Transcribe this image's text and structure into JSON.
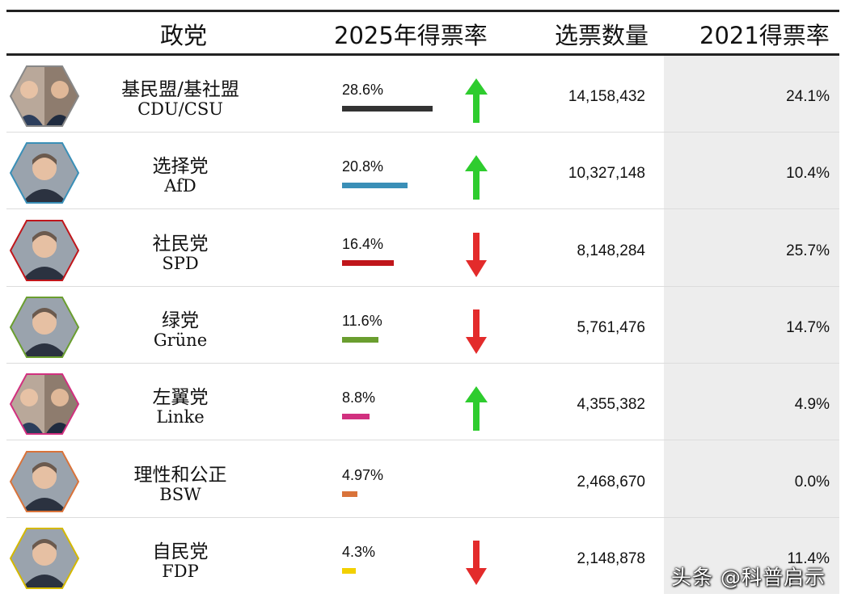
{
  "header": {
    "party": "政党",
    "share2025": "2025年得票率",
    "votes": "选票数量",
    "share2021": "2021得票率"
  },
  "colors": {
    "up": "#2ecc2e",
    "down": "#e32b2b"
  },
  "rows": [
    {
      "cn": "基民盟/基社盟",
      "en": "CDU/CSU",
      "pct": "28.6%",
      "share": 28.6,
      "color": "#333333",
      "trend": "up",
      "votes": "14,158,432",
      "prev": "24.1%",
      "border": "#888888",
      "icon": "two-leaders-portrait-icon"
    },
    {
      "cn": "选择党",
      "en": "AfD",
      "pct": "20.8%",
      "share": 20.8,
      "color": "#3a8fb7",
      "trend": "up",
      "votes": "10,327,148",
      "prev": "10.4%",
      "border": "#3a8fb7",
      "icon": "leader-portrait-icon"
    },
    {
      "cn": "社民党",
      "en": "SPD",
      "pct": "16.4%",
      "share": 16.4,
      "color": "#c0161b",
      "trend": "down",
      "votes": "8,148,284",
      "prev": "25.7%",
      "border": "#c0161b",
      "icon": "leader-portrait-icon"
    },
    {
      "cn": "绿党",
      "en": "Grüne",
      "pct": "11.6%",
      "share": 11.6,
      "color": "#6a9e2f",
      "trend": "down",
      "votes": "5,761,476",
      "prev": "14.7%",
      "border": "#6a9e2f",
      "icon": "leader-portrait-icon"
    },
    {
      "cn": "左翼党",
      "en": "Linke",
      "pct": "8.8%",
      "share": 8.8,
      "color": "#d1307f",
      "trend": "up",
      "votes": "4,355,382",
      "prev": "4.9%",
      "border": "#d1307f",
      "icon": "two-leaders-portrait-icon"
    },
    {
      "cn": "理性和公正",
      "en": "BSW",
      "pct": "4.97%",
      "share": 4.97,
      "color": "#d9733a",
      "trend": "none",
      "votes": "2,468,670",
      "prev": "0.0%",
      "border": "#d9733a",
      "icon": "leader-portrait-icon"
    },
    {
      "cn": "自民党",
      "en": "FDP",
      "pct": "4.3%",
      "share": 4.3,
      "color": "#f2d000",
      "trend": "down",
      "votes": "2,148,878",
      "prev": "11.4%",
      "border": "#d4b800",
      "icon": "leader-portrait-icon"
    }
  ],
  "chart_data": {
    "type": "table",
    "columns": [
      "政党",
      "2025年得票率",
      "选票数量",
      "2021得票率"
    ],
    "categories": [
      "CDU/CSU",
      "AfD",
      "SPD",
      "Grüne",
      "Linke",
      "BSW",
      "FDP"
    ],
    "series": [
      {
        "name": "2025年得票率",
        "values": [
          28.6,
          20.8,
          16.4,
          11.6,
          8.8,
          4.97,
          4.3
        ]
      },
      {
        "name": "选票数量",
        "values": [
          14158432,
          10327148,
          8148284,
          5761476,
          4355382,
          2468670,
          2148878
        ]
      },
      {
        "name": "2021得票率",
        "values": [
          24.1,
          10.4,
          25.7,
          14.7,
          4.9,
          0.0,
          11.4
        ]
      }
    ]
  },
  "watermark": "头条 @科普启示"
}
